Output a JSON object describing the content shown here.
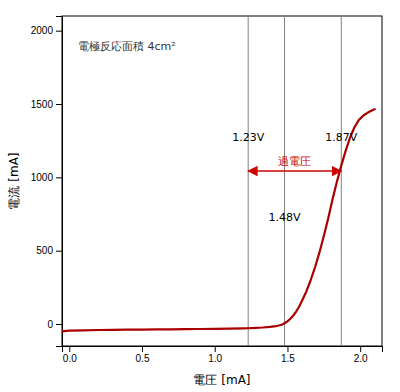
{
  "chart_data": {
    "type": "line",
    "annotation": "電極反応面積 4cm²",
    "xlabel": "電圧 [mA]",
    "ylabel": "電流 [mA]",
    "xlim": [
      -0.05,
      2.15
    ],
    "ylim": [
      -150,
      2100
    ],
    "xticks": [
      {
        "value": 0,
        "label": "0.0"
      },
      0.5,
      {
        "value": 1.0,
        "label": "1.0"
      },
      1.5,
      {
        "value": 2.0,
        "label": "2.0"
      }
    ],
    "yticks": [
      0,
      500,
      1000,
      1500,
      2000
    ],
    "grid": false,
    "vlines": [
      {
        "value": 1.23,
        "label": "1.23V",
        "color": "#808080"
      },
      {
        "value": 1.48,
        "label": "1.48V",
        "color": "#808080"
      },
      {
        "value": 1.87,
        "label": "1.87V",
        "color": "#808080"
      }
    ],
    "overvoltage": {
      "from": 1.23,
      "to": 1.87,
      "label": "過電圧",
      "color": "#cc0000"
    },
    "x": [
      -0.05,
      0.0,
      0.1,
      0.2,
      0.3,
      0.4,
      0.5,
      0.6,
      0.7,
      0.8,
      0.9,
      1.0,
      1.1,
      1.2,
      1.23,
      1.28,
      1.33,
      1.38,
      1.42,
      1.44,
      1.46,
      1.48,
      1.5,
      1.52,
      1.54,
      1.56,
      1.58,
      1.6,
      1.63,
      1.66,
      1.69,
      1.72,
      1.75,
      1.78,
      1.81,
      1.84,
      1.87,
      1.9,
      1.93,
      1.96,
      1.99,
      2.02,
      2.05,
      2.08,
      2.1
    ],
    "series": [
      {
        "color": "#aa0000",
        "values": [
          -50,
          -45,
          -43,
          -41,
          -40,
          -39,
          -38,
          -37,
          -36,
          -35,
          -34,
          -33,
          -32,
          -30,
          -29,
          -27,
          -24,
          -19,
          -14,
          -10,
          -5,
          5,
          18,
          36,
          58,
          85,
          118,
          158,
          222,
          300,
          388,
          488,
          600,
          720,
          850,
          970,
          1080,
          1180,
          1270,
          1340,
          1390,
          1420,
          1440,
          1455,
          1465
        ]
      }
    ]
  }
}
